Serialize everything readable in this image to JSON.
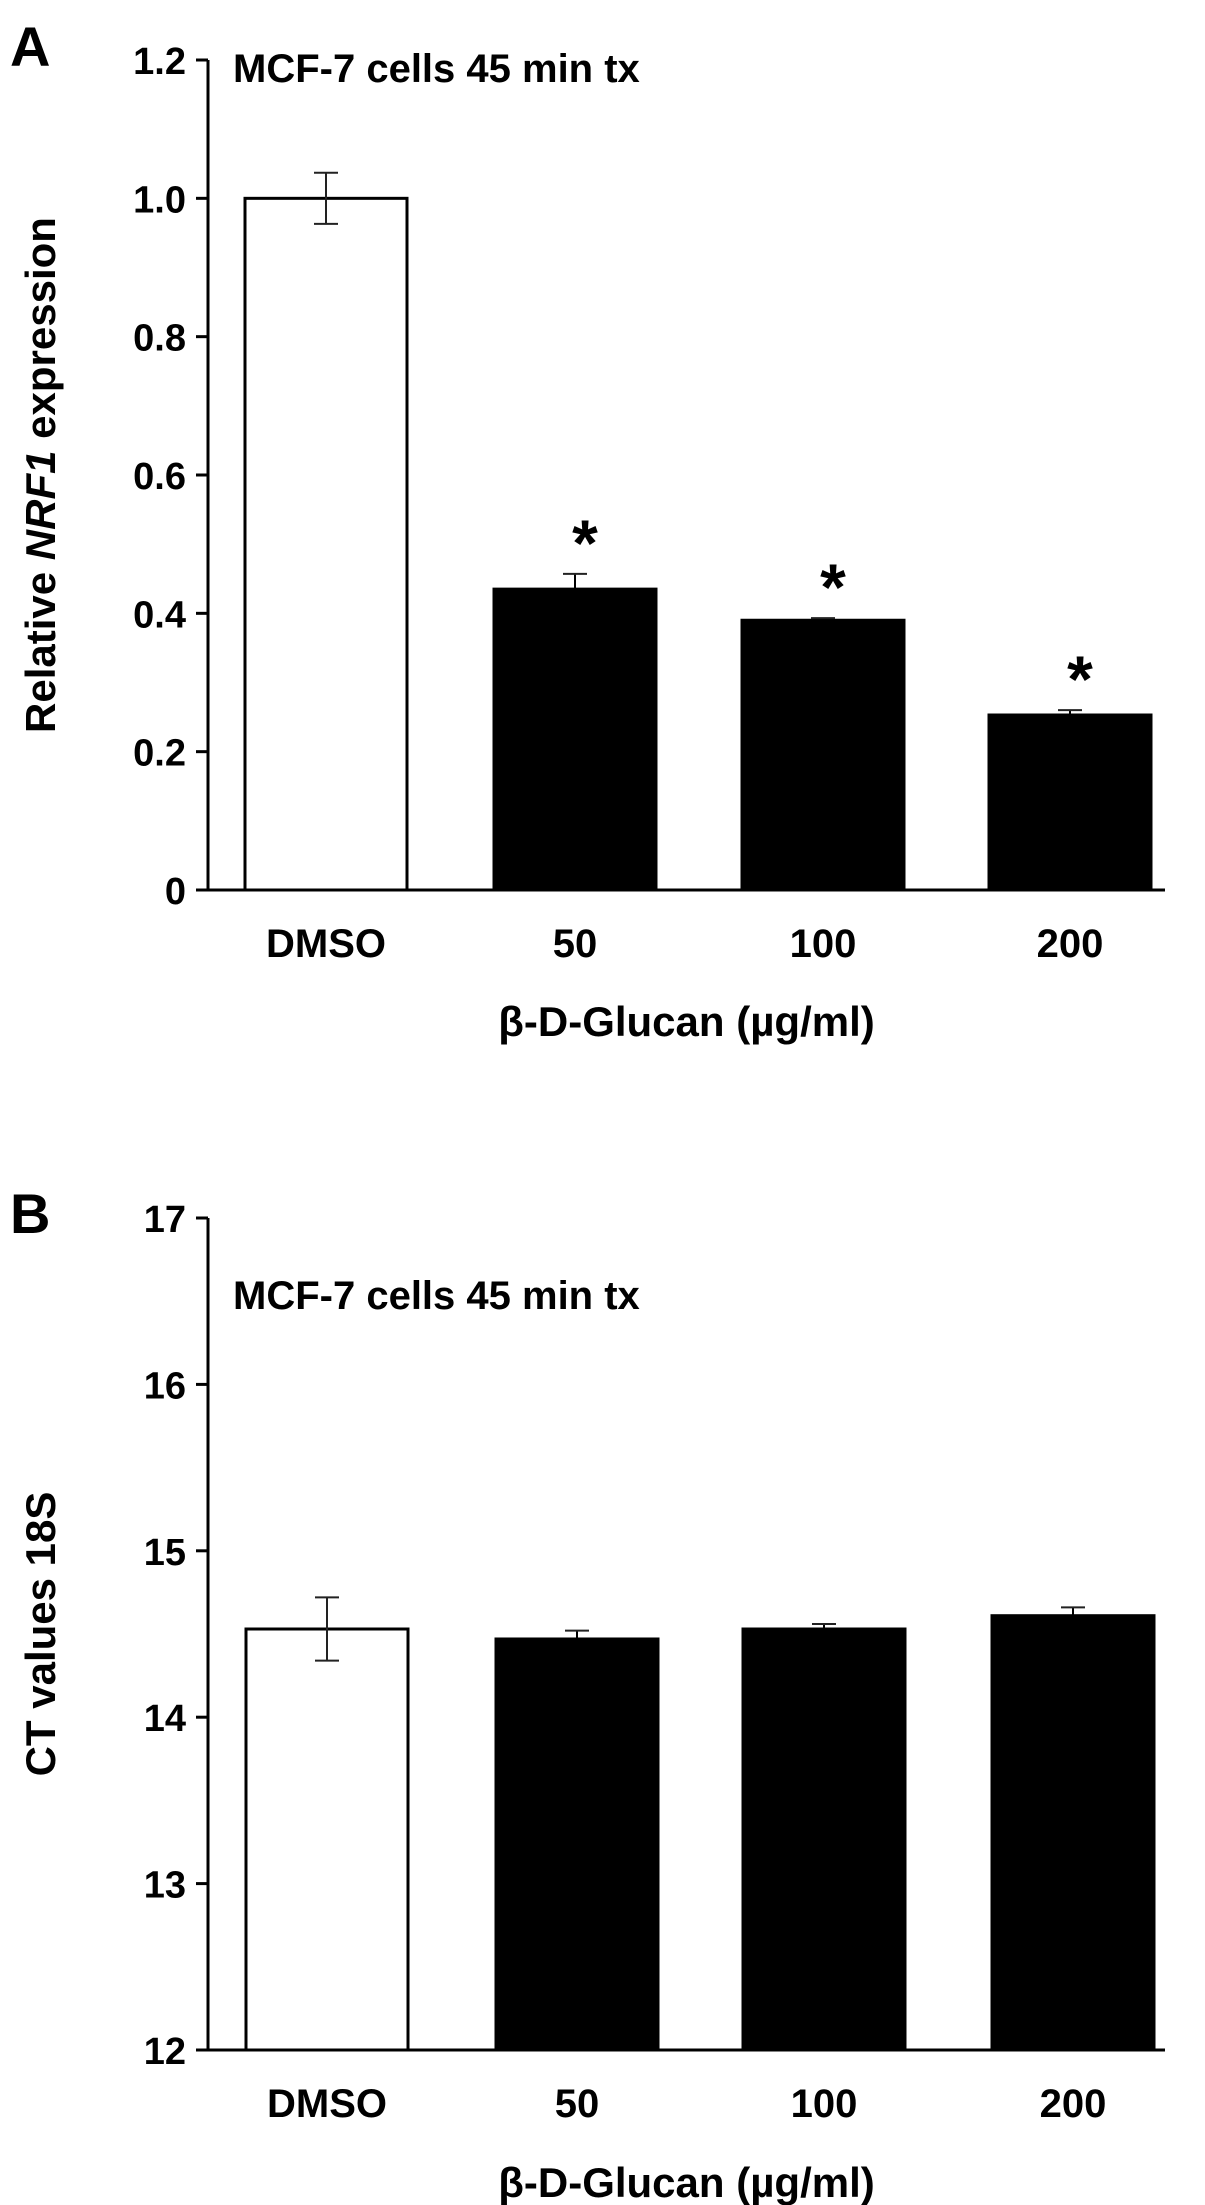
{
  "chart_data": [
    {
      "panel_label": "A",
      "type": "bar",
      "annotation": "MCF-7 cells 45 min tx",
      "categories": [
        "DMSO",
        "50",
        "100",
        "200"
      ],
      "values": [
        1.0,
        0.435,
        0.39,
        0.253
      ],
      "errors": [
        0.037,
        0.022,
        0.003,
        0.007
      ],
      "significance": [
        "",
        "*",
        "*",
        "*"
      ],
      "bar_colors": [
        "#ffffff",
        "#000000",
        "#000000",
        "#000000"
      ],
      "ylabel_pre": "Relative ",
      "ylabel_italic": "NRF1",
      "ylabel_post": " expression",
      "xlabel": "β-D-Glucan (µg/ml)",
      "ylim": [
        0,
        1.2
      ],
      "yticks": [
        0,
        0.2,
        0.4,
        0.6,
        0.8,
        1.0,
        1.2
      ],
      "ytick_labels": [
        "0",
        "0.2",
        "0.4",
        "0.6",
        "0.8",
        "1.0",
        "1.2"
      ],
      "grid": false
    },
    {
      "panel_label": "B",
      "type": "bar",
      "annotation": "MCF-7 cells 45 min tx",
      "categories": [
        "DMSO",
        "50",
        "100",
        "200"
      ],
      "values": [
        14.53,
        14.47,
        14.53,
        14.61
      ],
      "errors": [
        0.19,
        0.05,
        0.03,
        0.05
      ],
      "significance": [
        "",
        "",
        "",
        ""
      ],
      "bar_colors": [
        "#ffffff",
        "#000000",
        "#000000",
        "#000000"
      ],
      "ylabel": "CT values 18S",
      "xlabel": "β-D-Glucan (µg/ml)",
      "ylim": [
        12,
        17
      ],
      "yticks": [
        12,
        13,
        14,
        15,
        16,
        17
      ],
      "ytick_labels": [
        "12",
        "13",
        "14",
        "15",
        "16",
        "17"
      ],
      "grid": false
    }
  ]
}
